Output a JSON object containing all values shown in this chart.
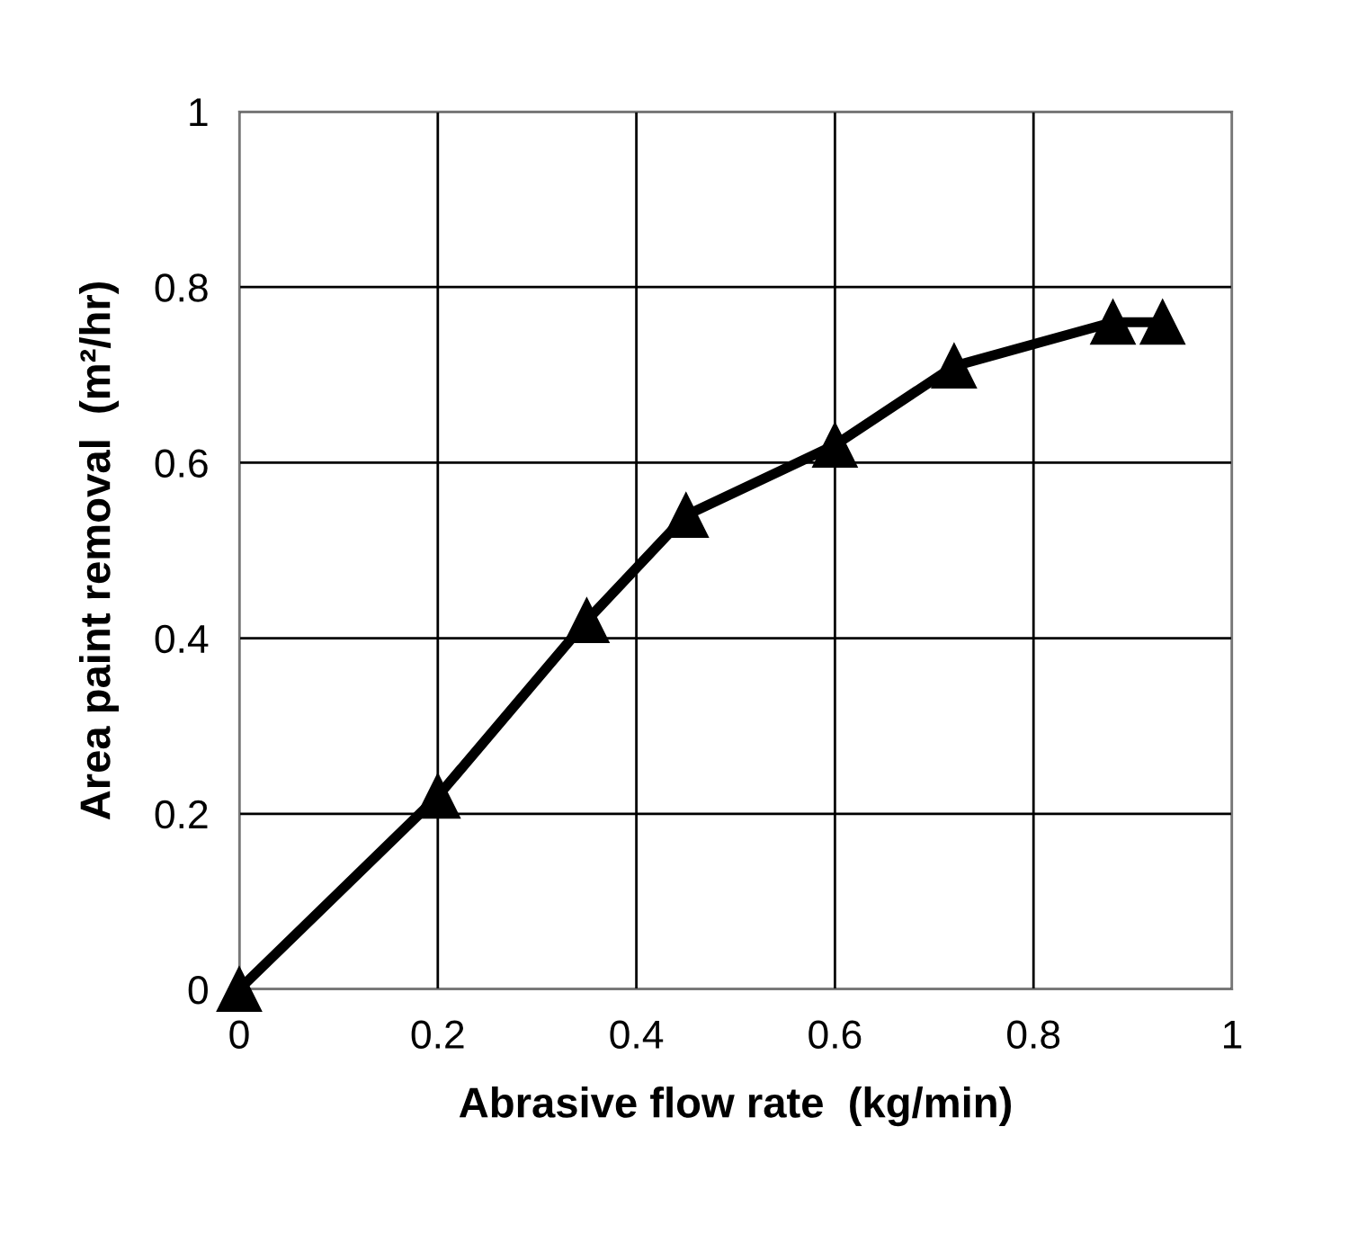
{
  "chart_data": {
    "type": "line",
    "xlabel": "Abrasive flow rate  (kg/min)",
    "ylabel": "Area paint removal  (m²/hr)",
    "series": [
      {
        "color": "#000000",
        "x": [
          0,
          0.2,
          0.35,
          0.45,
          0.6,
          0.72,
          0.88,
          0.93
        ],
        "values": [
          0,
          0.22,
          0.42,
          0.54,
          0.62,
          0.71,
          0.76,
          0.76
        ]
      }
    ],
    "xlim": [
      0,
      1
    ],
    "ylim": [
      0,
      1
    ],
    "xticks": [
      0,
      0.2,
      0.4,
      0.6,
      0.8,
      1
    ],
    "yticks": [
      0,
      0.2,
      0.4,
      0.6,
      0.8,
      1
    ],
    "grid": true,
    "marker": "triangle",
    "line_style": "solid"
  }
}
